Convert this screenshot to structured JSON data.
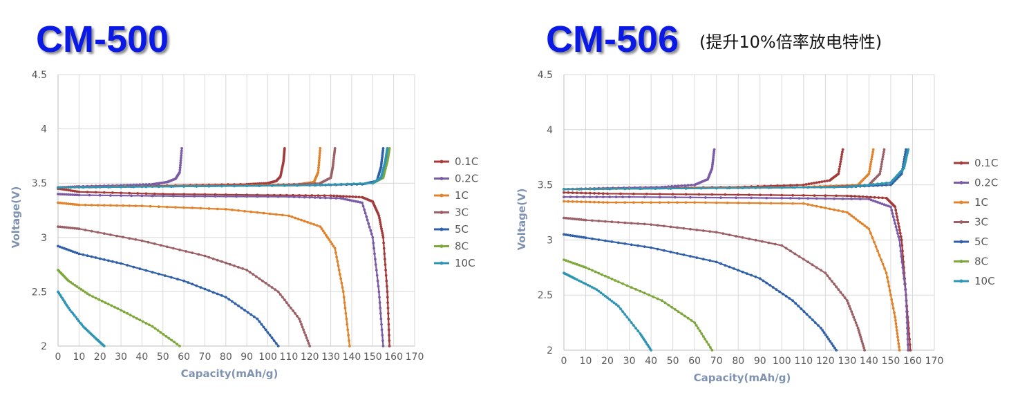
{
  "chart_data": [
    {
      "type": "line",
      "title": "CM-500",
      "subtitle": "",
      "xlabel": "Capacity(mAh/g)",
      "ylabel": "Voltage(V)",
      "xlim": [
        0,
        170
      ],
      "ylim": [
        2,
        4.5
      ],
      "x_ticks": [
        "0",
        "10",
        "20",
        "30",
        "40",
        "50",
        "60",
        "70",
        "80",
        "90",
        "100",
        "110",
        "120",
        "130",
        "140",
        "150",
        "160",
        "170"
      ],
      "y_ticks": [
        "2",
        "2.5",
        "3",
        "3.5",
        "4",
        "4.5"
      ],
      "grid": true,
      "legend_position": "right",
      "series": [
        {
          "name": "0.1C",
          "color": "#a33b3b",
          "discharge": [
            [
              0,
              3.45
            ],
            [
              10,
              3.42
            ],
            [
              50,
              3.4
            ],
            [
              100,
              3.39
            ],
            [
              130,
              3.385
            ],
            [
              145,
              3.37
            ],
            [
              150,
              3.33
            ],
            [
              153,
              3.2
            ],
            [
              155,
              3.0
            ],
            [
              157,
              2.5
            ],
            [
              158,
              2.0
            ]
          ],
          "charge": [
            [
              0,
              3.46
            ],
            [
              20,
              3.47
            ],
            [
              60,
              3.48
            ],
            [
              90,
              3.49
            ],
            [
              100,
              3.5
            ],
            [
              104,
              3.52
            ],
            [
              106,
              3.56
            ],
            [
              107.5,
              3.7
            ],
            [
              108,
              3.82
            ]
          ]
        },
        {
          "name": "0.2C",
          "color": "#7b5ba6",
          "discharge": [
            [
              0,
              3.4
            ],
            [
              10,
              3.39
            ],
            [
              60,
              3.38
            ],
            [
              110,
              3.375
            ],
            [
              135,
              3.36
            ],
            [
              145,
              3.32
            ],
            [
              150,
              3.0
            ],
            [
              153,
              2.5
            ],
            [
              155,
              2.0
            ]
          ],
          "charge": [
            [
              0,
              3.46
            ],
            [
              10,
              3.47
            ],
            [
              30,
              3.48
            ],
            [
              45,
              3.49
            ],
            [
              52,
              3.51
            ],
            [
              56,
              3.54
            ],
            [
              58,
              3.6
            ],
            [
              59,
              3.82
            ]
          ]
        },
        {
          "name": "1C",
          "color": "#e0832c",
          "discharge": [
            [
              0,
              3.32
            ],
            [
              10,
              3.3
            ],
            [
              40,
              3.29
            ],
            [
              80,
              3.26
            ],
            [
              110,
              3.2
            ],
            [
              125,
              3.1
            ],
            [
              132,
              2.9
            ],
            [
              136,
              2.5
            ],
            [
              139,
              2.0
            ]
          ],
          "charge": [
            [
              0,
              3.46
            ],
            [
              40,
              3.47
            ],
            [
              90,
              3.48
            ],
            [
              115,
              3.49
            ],
            [
              122,
              3.51
            ],
            [
              124,
              3.6
            ],
            [
              125,
              3.82
            ]
          ]
        },
        {
          "name": "3C",
          "color": "#9b6066",
          "discharge": [
            [
              0,
              3.1
            ],
            [
              10,
              3.08
            ],
            [
              40,
              2.97
            ],
            [
              70,
              2.83
            ],
            [
              90,
              2.7
            ],
            [
              105,
              2.5
            ],
            [
              115,
              2.25
            ],
            [
              120,
              2.0
            ]
          ],
          "charge": [
            [
              0,
              3.46
            ],
            [
              50,
              3.47
            ],
            [
              100,
              3.48
            ],
            [
              125,
              3.5
            ],
            [
              130,
              3.55
            ],
            [
              131,
              3.65
            ],
            [
              132,
              3.82
            ]
          ]
        },
        {
          "name": "5C",
          "color": "#2f5fa8",
          "discharge": [
            [
              0,
              2.92
            ],
            [
              10,
              2.85
            ],
            [
              30,
              2.76
            ],
            [
              60,
              2.6
            ],
            [
              80,
              2.45
            ],
            [
              95,
              2.25
            ],
            [
              105,
              2.0
            ]
          ],
          "charge": [
            [
              0,
              3.46
            ],
            [
              60,
              3.47
            ],
            [
              120,
              3.48
            ],
            [
              145,
              3.49
            ],
            [
              152,
              3.52
            ],
            [
              154,
              3.65
            ],
            [
              155,
              3.82
            ]
          ]
        },
        {
          "name": "8C",
          "color": "#7ea83c",
          "discharge": [
            [
              0,
              2.7
            ],
            [
              5,
              2.6
            ],
            [
              15,
              2.47
            ],
            [
              30,
              2.33
            ],
            [
              45,
              2.18
            ],
            [
              58,
              2.0
            ]
          ],
          "charge": [
            [
              0,
              3.46
            ],
            [
              60,
              3.47
            ],
            [
              120,
              3.48
            ],
            [
              150,
              3.5
            ],
            [
              155,
              3.55
            ],
            [
              157,
              3.7
            ],
            [
              158,
              3.82
            ]
          ]
        },
        {
          "name": "10C",
          "color": "#2e95b4",
          "discharge": [
            [
              0,
              2.5
            ],
            [
              5,
              2.35
            ],
            [
              12,
              2.18
            ],
            [
              18,
              2.07
            ],
            [
              22,
              2.0
            ]
          ],
          "charge": [
            [
              0,
              3.46
            ],
            [
              60,
              3.47
            ],
            [
              120,
              3.48
            ],
            [
              150,
              3.5
            ],
            [
              154,
              3.55
            ],
            [
              156,
              3.7
            ],
            [
              157,
              3.82
            ]
          ]
        }
      ]
    },
    {
      "type": "line",
      "title": "CM-506",
      "subtitle": "(提升10%倍率放电特性)",
      "xlabel": "Capacity(mAh/g)",
      "ylabel": "Voltage(V)",
      "xlim": [
        0,
        170
      ],
      "ylim": [
        2,
        4.5
      ],
      "x_ticks": [
        "0",
        "10",
        "20",
        "30",
        "40",
        "50",
        "60",
        "70",
        "80",
        "90",
        "100",
        "110",
        "120",
        "130",
        "140",
        "150",
        "160",
        "170"
      ],
      "y_ticks": [
        "2",
        "2.5",
        "3",
        "3.5",
        "4",
        "4.5"
      ],
      "grid": true,
      "legend_position": "right",
      "series": [
        {
          "name": "0.1C",
          "color": "#a33b3b",
          "discharge": [
            [
              0,
              3.43
            ],
            [
              20,
              3.42
            ],
            [
              80,
              3.41
            ],
            [
              130,
              3.4
            ],
            [
              148,
              3.38
            ],
            [
              152,
              3.3
            ],
            [
              155,
              3.0
            ],
            [
              157,
              2.5
            ],
            [
              159,
              2.0
            ]
          ],
          "charge": [
            [
              0,
              3.46
            ],
            [
              40,
              3.47
            ],
            [
              80,
              3.48
            ],
            [
              110,
              3.5
            ],
            [
              122,
              3.54
            ],
            [
              126,
              3.6
            ],
            [
              128,
              3.82
            ]
          ]
        },
        {
          "name": "0.2C",
          "color": "#7b5ba6",
          "discharge": [
            [
              0,
              3.39
            ],
            [
              30,
              3.39
            ],
            [
              100,
              3.38
            ],
            [
              140,
              3.37
            ],
            [
              150,
              3.3
            ],
            [
              154,
              3.0
            ],
            [
              157,
              2.5
            ],
            [
              158,
              2.0
            ]
          ],
          "charge": [
            [
              0,
              3.46
            ],
            [
              20,
              3.47
            ],
            [
              45,
              3.48
            ],
            [
              60,
              3.5
            ],
            [
              66,
              3.55
            ],
            [
              68,
              3.65
            ],
            [
              69,
              3.82
            ]
          ]
        },
        {
          "name": "1C",
          "color": "#e0832c",
          "discharge": [
            [
              0,
              3.35
            ],
            [
              20,
              3.34
            ],
            [
              60,
              3.34
            ],
            [
              110,
              3.33
            ],
            [
              130,
              3.25
            ],
            [
              140,
              3.1
            ],
            [
              148,
              2.7
            ],
            [
              152,
              2.3
            ],
            [
              154,
              2.0
            ]
          ],
          "charge": [
            [
              0,
              3.46
            ],
            [
              60,
              3.47
            ],
            [
              110,
              3.48
            ],
            [
              135,
              3.5
            ],
            [
              140,
              3.6
            ],
            [
              142,
              3.82
            ]
          ]
        },
        {
          "name": "3C",
          "color": "#9b6066",
          "discharge": [
            [
              0,
              3.2
            ],
            [
              10,
              3.18
            ],
            [
              40,
              3.14
            ],
            [
              70,
              3.07
            ],
            [
              100,
              2.95
            ],
            [
              120,
              2.7
            ],
            [
              130,
              2.45
            ],
            [
              135,
              2.2
            ],
            [
              138,
              2.0
            ]
          ],
          "charge": [
            [
              0,
              3.46
            ],
            [
              70,
              3.47
            ],
            [
              120,
              3.48
            ],
            [
              140,
              3.5
            ],
            [
              145,
              3.6
            ],
            [
              147,
              3.82
            ]
          ]
        },
        {
          "name": "5C",
          "color": "#2f5fa8",
          "discharge": [
            [
              0,
              3.05
            ],
            [
              10,
              3.02
            ],
            [
              40,
              2.93
            ],
            [
              70,
              2.8
            ],
            [
              90,
              2.65
            ],
            [
              105,
              2.45
            ],
            [
              118,
              2.2
            ],
            [
              125,
              2.0
            ]
          ],
          "charge": [
            [
              0,
              3.46
            ],
            [
              70,
              3.47
            ],
            [
              130,
              3.48
            ],
            [
              150,
              3.5
            ],
            [
              155,
              3.6
            ],
            [
              157,
              3.82
            ]
          ]
        },
        {
          "name": "8C",
          "color": "#7ea83c",
          "discharge": [
            [
              0,
              2.82
            ],
            [
              10,
              2.75
            ],
            [
              25,
              2.62
            ],
            [
              45,
              2.45
            ],
            [
              60,
              2.25
            ],
            [
              68,
              2.0
            ]
          ],
          "charge": [
            [
              0,
              3.46
            ],
            [
              70,
              3.47
            ],
            [
              130,
              3.48
            ],
            [
              150,
              3.52
            ],
            [
              156,
              3.65
            ],
            [
              158,
              3.82
            ]
          ]
        },
        {
          "name": "10C",
          "color": "#2e95b4",
          "discharge": [
            [
              0,
              2.7
            ],
            [
              5,
              2.65
            ],
            [
              15,
              2.55
            ],
            [
              25,
              2.4
            ],
            [
              35,
              2.15
            ],
            [
              40,
              2.0
            ]
          ],
          "charge": [
            [
              0,
              3.46
            ],
            [
              70,
              3.47
            ],
            [
              130,
              3.48
            ],
            [
              150,
              3.52
            ],
            [
              156,
              3.65
            ],
            [
              158,
              3.82
            ]
          ]
        }
      ]
    }
  ]
}
